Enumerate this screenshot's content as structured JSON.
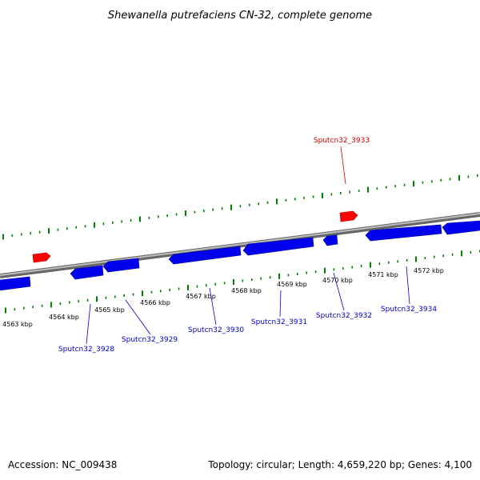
{
  "title": "Shewanella putrefaciens CN-32, complete genome",
  "footer": {
    "accession": "Accession: NC_009438",
    "summary": "Topology: circular; Length: 4,659,220 bp; Genes: 4,100"
  },
  "colors": {
    "forward_gene": "#ff0000",
    "reverse_gene": "#0000ff",
    "label_reverse": "#0000cc",
    "label_forward": "#cc0000",
    "ticks": "#008000",
    "backbone": "#888888"
  },
  "scale_labels": [
    "4563 kbp",
    "4564 kbp",
    "4565 kbp",
    "4566 kbp",
    "4567 kbp",
    "4568 kbp",
    "4569 kbp",
    "4570 kbp",
    "4571 kbp",
    "4572 kbp"
  ],
  "gene_labels": {
    "g3928": "Sputcn32_3928",
    "g3929": "Sputcn32_3929",
    "g3930": "Sputcn32_3930",
    "g3931": "Sputcn32_3931",
    "g3932": "Sputcn32_3932",
    "g3933": "Sputcn32_3933",
    "g3934": "Sputcn32_3934"
  }
}
